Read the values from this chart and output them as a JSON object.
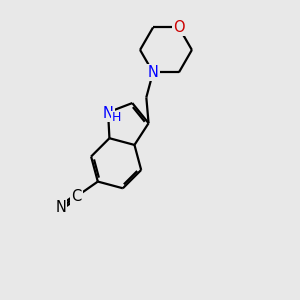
{
  "bg_color": "#e8e8e8",
  "bond_color": "#000000",
  "n_color": "#0000ff",
  "o_color": "#cc0000",
  "lw": 1.6,
  "fs": 10.5,
  "xlim": [
    0,
    10
  ],
  "ylim": [
    0,
    10
  ]
}
